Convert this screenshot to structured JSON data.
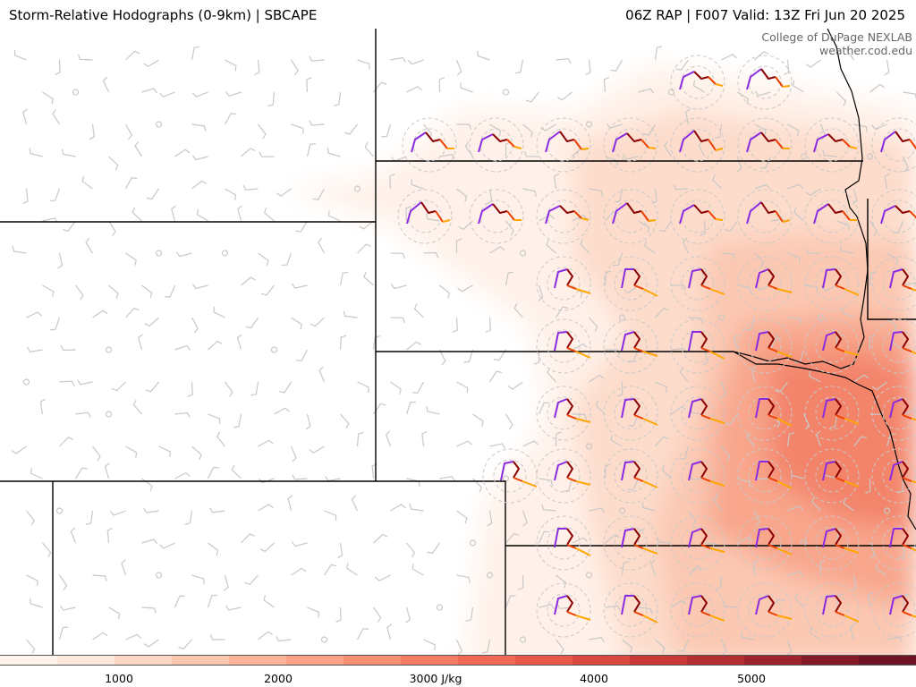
{
  "header": {
    "title_left": "Storm-Relative Hodographs (0-9km) | SBCAPE",
    "title_right": "06Z RAP | F007 Valid: 13Z Fri Jun 20 2025"
  },
  "credit": {
    "line1": "College of DuPage NEXLAB",
    "line2": "weather.cod.edu"
  },
  "colorbar": {
    "colors": [
      "#fff3ec",
      "#ffe8dc",
      "#fdd8c6",
      "#fcc7b0",
      "#fbb49b",
      "#f9a287",
      "#f78f74",
      "#f47c63",
      "#ef6954",
      "#e65848",
      "#d9473e",
      "#c83936",
      "#b32d31",
      "#9d232c",
      "#861b28",
      "#6f1424"
    ],
    "ticks": [
      {
        "label": "1000"
      },
      {
        "label": "2000"
      },
      {
        "label": "3000 J/kg"
      },
      {
        "label": "4000"
      },
      {
        "label": "5000"
      }
    ]
  },
  "legend": {
    "hodograph_layer_colors": [
      "#8a2be2",
      "#8b0000",
      "#ee4000",
      "#ffa500"
    ],
    "wind_barb_color": "#c8c8c8"
  }
}
